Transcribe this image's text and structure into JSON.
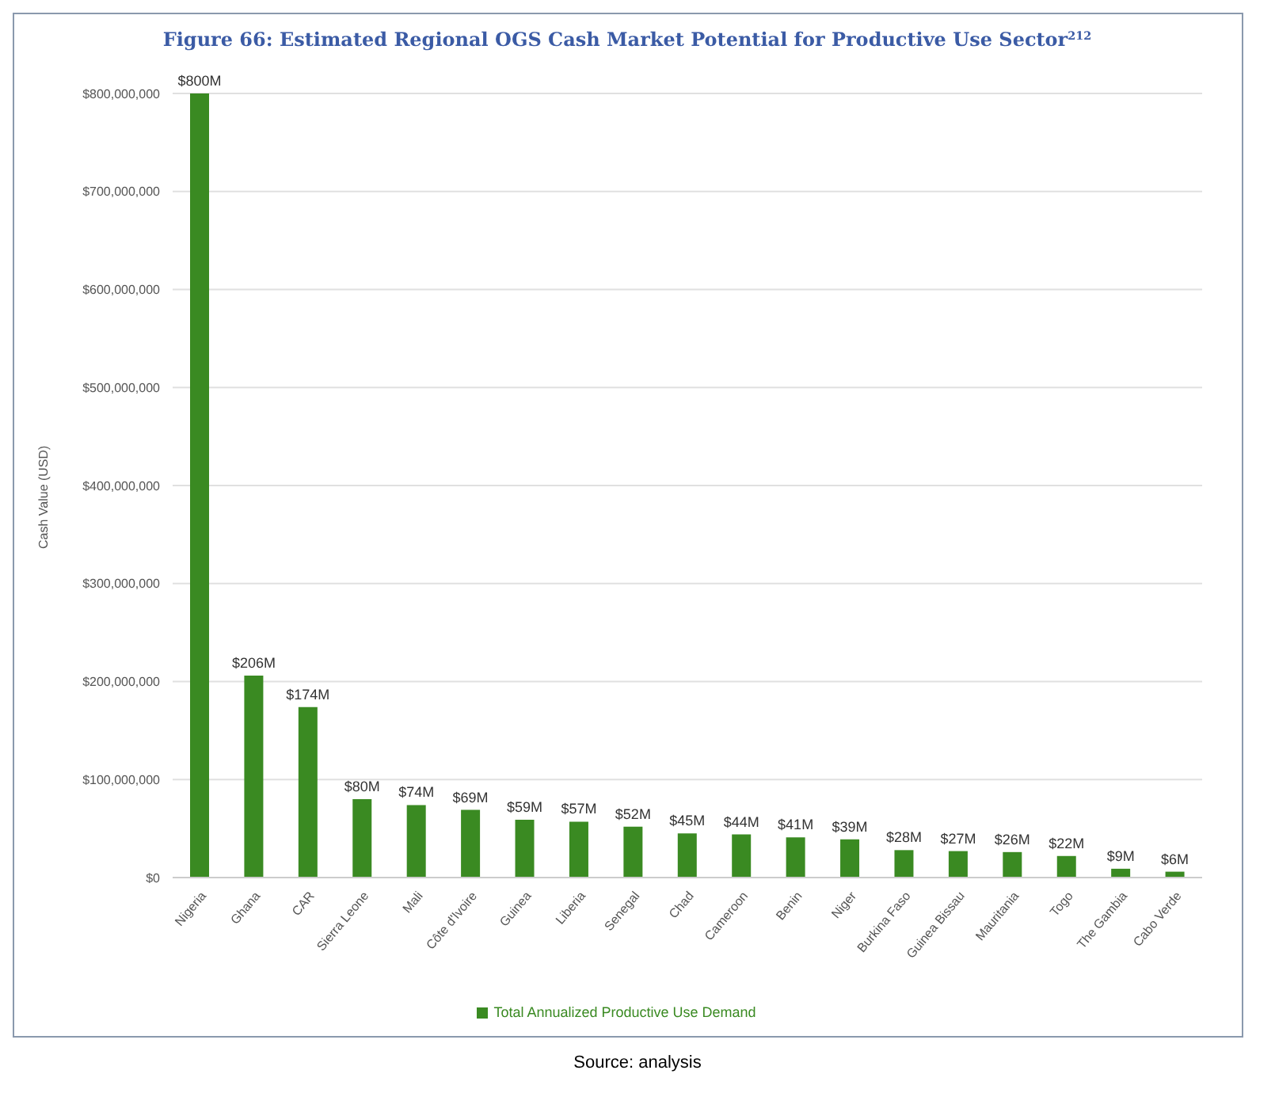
{
  "chart_data": {
    "type": "bar",
    "title": "Figure 66: Estimated Regional OGS Cash Market Potential for Productive Use Sector$^{212}$",
    "ylabel": "Cash Value (USD)",
    "categories": [
      "Nigeria",
      "Ghana",
      "CAR",
      "Sierra Leone",
      "Mali",
      "Côte d'Ivoire",
      "Guinea",
      "Liberia",
      "Senegal",
      "Chad",
      "Cameroon",
      "Benin",
      "Niger",
      "Burkina Faso",
      "Guinea Bissau",
      "Mauritania",
      "Togo",
      "The Gambia",
      "Cabo Verde"
    ],
    "series": [
      {
        "name": "Total Annualized Productive Use Demand",
        "color": "#3a8a22",
        "values": [
          800000000,
          206000000,
          174000000,
          80000000,
          74000000,
          69000000,
          59000000,
          57000000,
          52000000,
          45000000,
          44000000,
          41000000,
          39000000,
          28000000,
          27000000,
          26000000,
          22000000,
          9000000,
          6000000
        ],
        "value_labels": [
          "$800M",
          "$206M",
          "$174M",
          "$80M",
          "$74M",
          "$69M",
          "$59M",
          "$57M",
          "$52M",
          "$45M",
          "$44M",
          "$41M",
          "$39M",
          "$28M",
          "$27M",
          "$26M",
          "$22M",
          "$9M",
          "$6M"
        ]
      }
    ],
    "ylim": [
      0,
      800000000
    ],
    "yticks": [
      {
        "value": 0,
        "label": "$0"
      },
      {
        "value": 100000000,
        "label": "$100,000,000"
      },
      {
        "value": 200000000,
        "label": "$200,000,000"
      },
      {
        "value": 300000000,
        "label": "$300,000,000"
      },
      {
        "value": 400000000,
        "label": "$400,000,000"
      },
      {
        "value": 500000000,
        "label": "$500,000,000"
      },
      {
        "value": 600000000,
        "label": "$600,000,000"
      },
      {
        "value": 700000000,
        "label": "$700,000,000"
      },
      {
        "value": 800000000,
        "label": "$800,000,000"
      }
    ],
    "grid": "y",
    "legend": "bottom",
    "annotations": [
      "Source: analysis"
    ]
  }
}
